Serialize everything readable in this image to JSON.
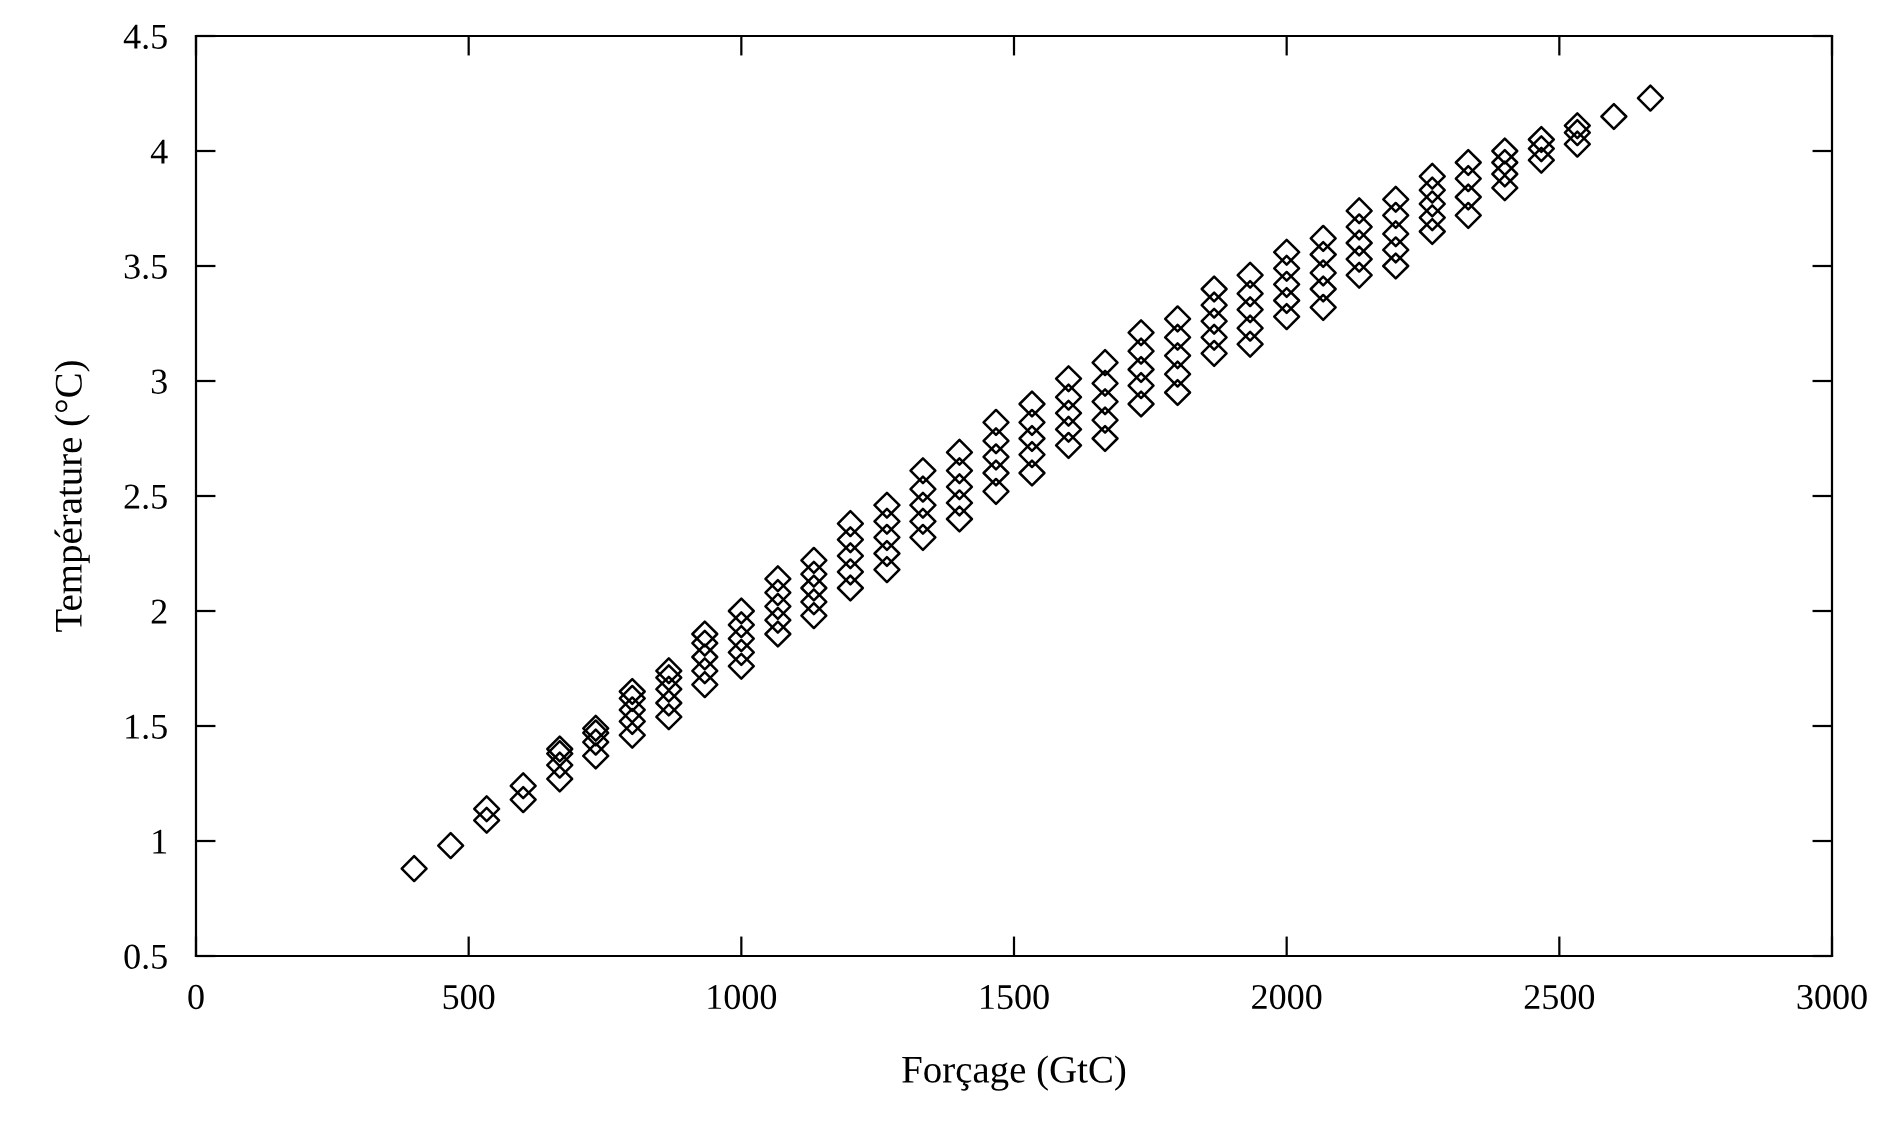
{
  "chart_data": {
    "type": "scatter",
    "xlabel": "Forçage (GtC)",
    "ylabel": "Température (°C)",
    "xlim": [
      0,
      3000
    ],
    "xticks": [
      0,
      500,
      1000,
      1500,
      2000,
      2500,
      3000
    ],
    "ylim": [
      0.5,
      4.5
    ],
    "yticks": [
      0.5,
      1,
      1.5,
      2,
      2.5,
      3,
      3.5,
      4,
      4.5
    ],
    "grid": false,
    "marker": "diamond",
    "series": [
      {
        "color": "#000000",
        "x": [
          400,
          467,
          533,
          533,
          600,
          600,
          667,
          667,
          667,
          667,
          733,
          733,
          733,
          733,
          800,
          800,
          800,
          800,
          800,
          867,
          867,
          867,
          867,
          867,
          933,
          933,
          933,
          933,
          933,
          1000,
          1000,
          1000,
          1000,
          1000,
          1067,
          1067,
          1067,
          1067,
          1067,
          1133,
          1133,
          1133,
          1133,
          1133,
          1200,
          1200,
          1200,
          1200,
          1200,
          1267,
          1267,
          1267,
          1267,
          1267,
          1333,
          1333,
          1333,
          1333,
          1333,
          1400,
          1400,
          1400,
          1400,
          1400,
          1467,
          1467,
          1467,
          1467,
          1467,
          1533,
          1533,
          1533,
          1533,
          1533,
          1600,
          1600,
          1600,
          1600,
          1600,
          1667,
          1667,
          1667,
          1667,
          1667,
          1733,
          1733,
          1733,
          1733,
          1733,
          1800,
          1800,
          1800,
          1800,
          1800,
          1867,
          1867,
          1867,
          1867,
          1867,
          1933,
          1933,
          1933,
          1933,
          1933,
          2000,
          2000,
          2000,
          2000,
          2000,
          2067,
          2067,
          2067,
          2067,
          2067,
          2133,
          2133,
          2133,
          2133,
          2133,
          2200,
          2200,
          2200,
          2200,
          2200,
          2267,
          2267,
          2267,
          2267,
          2267,
          2333,
          2333,
          2333,
          2333,
          2400,
          2400,
          2400,
          2400,
          2467,
          2467,
          2467,
          2533,
          2533,
          2533,
          2600,
          2667
        ],
        "values": [
          0.88,
          0.98,
          1.09,
          1.14,
          1.18,
          1.24,
          1.27,
          1.33,
          1.38,
          1.4,
          1.37,
          1.43,
          1.47,
          1.49,
          1.46,
          1.52,
          1.57,
          1.62,
          1.65,
          1.54,
          1.6,
          1.66,
          1.71,
          1.74,
          1.68,
          1.74,
          1.8,
          1.86,
          1.9,
          1.76,
          1.82,
          1.88,
          1.94,
          2.0,
          1.9,
          1.96,
          2.02,
          2.08,
          2.14,
          1.98,
          2.04,
          2.1,
          2.16,
          2.22,
          2.1,
          2.17,
          2.24,
          2.31,
          2.38,
          2.18,
          2.25,
          2.32,
          2.39,
          2.46,
          2.32,
          2.39,
          2.46,
          2.53,
          2.61,
          2.4,
          2.47,
          2.54,
          2.61,
          2.69,
          2.52,
          2.6,
          2.67,
          2.74,
          2.82,
          2.6,
          2.68,
          2.75,
          2.82,
          2.9,
          2.72,
          2.79,
          2.86,
          2.93,
          3.01,
          2.75,
          2.83,
          2.91,
          2.99,
          3.08,
          2.9,
          2.98,
          3.05,
          3.13,
          3.21,
          2.95,
          3.03,
          3.11,
          3.19,
          3.27,
          3.12,
          3.19,
          3.26,
          3.33,
          3.4,
          3.16,
          3.23,
          3.31,
          3.38,
          3.46,
          3.28,
          3.35,
          3.42,
          3.49,
          3.56,
          3.32,
          3.4,
          3.47,
          3.55,
          3.62,
          3.46,
          3.53,
          3.6,
          3.67,
          3.74,
          3.5,
          3.57,
          3.64,
          3.72,
          3.79,
          3.65,
          3.71,
          3.77,
          3.83,
          3.89,
          3.72,
          3.8,
          3.88,
          3.95,
          3.84,
          3.9,
          3.95,
          4.0,
          3.96,
          4.01,
          4.05,
          4.03,
          4.08,
          4.11,
          4.15,
          4.23
        ]
      }
    ]
  }
}
